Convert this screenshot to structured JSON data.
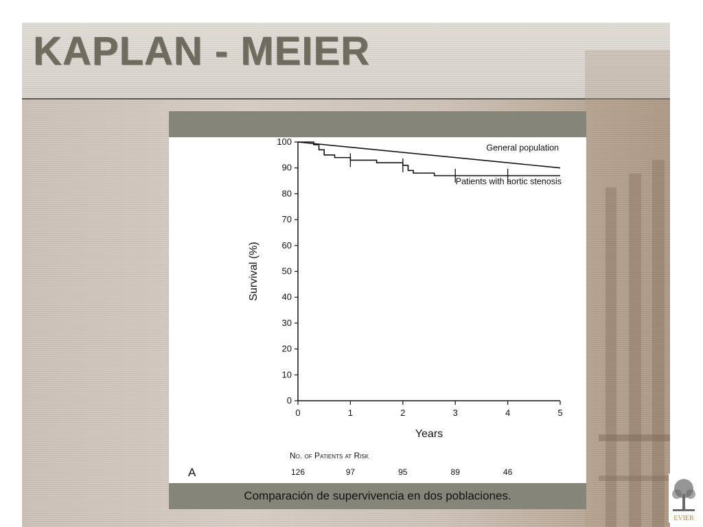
{
  "slide": {
    "title": "KAPLAN - MEIER",
    "caption": "Comparación de supervivencia en dos poblaciones.",
    "logo_text": "EVIER"
  },
  "chart_data": {
    "type": "line",
    "panel_label": "A",
    "xlabel": "Years",
    "ylabel": "Survival (%)",
    "xlim": [
      0,
      5
    ],
    "ylim": [
      0,
      100
    ],
    "x_ticks": [
      0,
      1,
      2,
      3,
      4,
      5
    ],
    "y_ticks": [
      0,
      10,
      20,
      30,
      40,
      50,
      60,
      70,
      80,
      90,
      100
    ],
    "grid": false,
    "series": [
      {
        "name": "General population",
        "step": false,
        "points": [
          [
            0,
            100
          ],
          [
            5,
            90
          ]
        ]
      },
      {
        "name": "Patients with aortic stenosis",
        "step": true,
        "points": [
          [
            0,
            100
          ],
          [
            0.3,
            99
          ],
          [
            0.4,
            97
          ],
          [
            0.5,
            95
          ],
          [
            0.7,
            94
          ],
          [
            1.0,
            93
          ],
          [
            1.5,
            92
          ],
          [
            2.0,
            91
          ],
          [
            2.1,
            89
          ],
          [
            2.2,
            88
          ],
          [
            2.6,
            87
          ],
          [
            5,
            87
          ]
        ],
        "censor_marks": [
          [
            1,
            93
          ],
          [
            2,
            91
          ],
          [
            3,
            87
          ],
          [
            4,
            87
          ]
        ]
      }
    ],
    "at_risk": {
      "title": "No. of Patients at Risk",
      "years": [
        0,
        1,
        2,
        3,
        4
      ],
      "counts": [
        "126",
        "97",
        "95",
        "89",
        "46"
      ]
    }
  }
}
